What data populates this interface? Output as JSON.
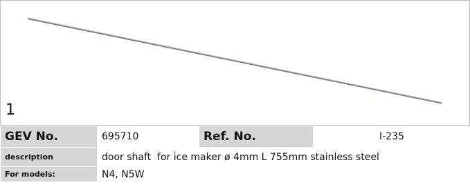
{
  "photo": {
    "number": "1"
  },
  "table": {
    "rows": [
      [
        "GEV No.",
        "695710",
        "Ref. No.",
        "I-235"
      ],
      [
        "description",
        "door shaft  for ice maker ø 4mm L 755mm stainless steel"
      ],
      [
        "For models:",
        "N4, N5W"
      ]
    ]
  }
}
